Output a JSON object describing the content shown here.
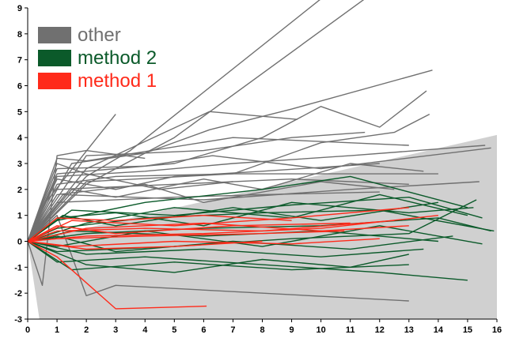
{
  "chart_data": {
    "type": "line",
    "title": "",
    "xlabel": "",
    "ylabel": "",
    "xlim": [
      0,
      16
    ],
    "ylim": [
      -3,
      9
    ],
    "xticks": [
      "0",
      "1",
      "2",
      "3",
      "4",
      "5",
      "6",
      "7",
      "8",
      "9",
      "10",
      "11",
      "12",
      "13",
      "14",
      "15",
      "16"
    ],
    "yticks": [
      "-3",
      "-2",
      "-1",
      "0",
      "1",
      "2",
      "3",
      "4",
      "5",
      "6",
      "7",
      "8",
      "9"
    ],
    "grid": false,
    "legend_position": "top-left",
    "shaded_region": {
      "color": "#d0d0d0",
      "lower": [
        [
          0,
          0
        ],
        [
          0.4,
          -3
        ],
        [
          16,
          -3
        ]
      ],
      "upper": [
        [
          0,
          0
        ],
        [
          16,
          4.1
        ]
      ]
    },
    "series": [
      {
        "name": "other",
        "color": "#707070",
        "lines": [
          [
            [
              0,
              0
            ],
            [
              0.4,
              1.2
            ],
            [
              3,
              4.9
            ]
          ],
          [
            [
              0,
              0
            ],
            [
              0.5,
              -1.7
            ],
            [
              1,
              3.3
            ],
            [
              2,
              3.5
            ],
            [
              4,
              3.2
            ]
          ],
          [
            [
              0,
              0
            ],
            [
              1,
              3.2
            ],
            [
              2,
              3.1
            ],
            [
              7,
              4.0
            ],
            [
              13,
              3.7
            ]
          ],
          [
            [
              0,
              0
            ],
            [
              1,
              2.8
            ],
            [
              4,
              2.9
            ],
            [
              6.3,
              3.3
            ],
            [
              10,
              2.8
            ],
            [
              15.8,
              3.6
            ]
          ],
          [
            [
              0,
              0
            ],
            [
              1,
              2.5
            ],
            [
              4,
              2.7
            ],
            [
              7,
              3.0
            ],
            [
              11,
              3.3
            ],
            [
              15.6,
              3.7
            ]
          ],
          [
            [
              0,
              0
            ],
            [
              1,
              2.2
            ],
            [
              3,
              2.5
            ],
            [
              7,
              2.6
            ],
            [
              11,
              2.6
            ],
            [
              14,
              2.6
            ]
          ],
          [
            [
              0,
              0
            ],
            [
              1,
              2.0
            ],
            [
              5,
              2.2
            ],
            [
              9,
              2.4
            ],
            [
              13,
              2.2
            ]
          ],
          [
            [
              0,
              0
            ],
            [
              1.2,
              1.8
            ],
            [
              6,
              1.6
            ],
            [
              11,
              2.0
            ],
            [
              15.4,
              2.3
            ]
          ],
          [
            [
              0,
              0
            ],
            [
              1,
              1.5
            ],
            [
              5,
              1.7
            ],
            [
              8,
              1.8
            ],
            [
              12,
              1.9
            ]
          ],
          [
            [
              0,
              0
            ],
            [
              2,
              2.5
            ],
            [
              3.5,
              3.5
            ],
            [
              10.5,
              9.8
            ]
          ],
          [
            [
              0,
              0
            ],
            [
              2,
              2.2
            ],
            [
              5,
              4.0
            ],
            [
              11.8,
              9.6
            ]
          ],
          [
            [
              0,
              0
            ],
            [
              1.5,
              3.0
            ],
            [
              4,
              3.4
            ],
            [
              6.2,
              4.3
            ],
            [
              9,
              5.1
            ],
            [
              13.8,
              6.6
            ]
          ],
          [
            [
              0,
              0
            ],
            [
              2,
              2.8
            ],
            [
              6.2,
              5.0
            ],
            [
              9.2,
              4.7
            ]
          ],
          [
            [
              0,
              0
            ],
            [
              1,
              2.6
            ],
            [
              5,
              3.0
            ],
            [
              8,
              4.0
            ],
            [
              10,
              5.2
            ],
            [
              12,
              4.4
            ],
            [
              13.6,
              5.8
            ]
          ],
          [
            [
              0,
              0
            ],
            [
              2,
              3.3
            ],
            [
              6,
              3.5
            ],
            [
              9,
              4.0
            ],
            [
              11.5,
              4.2
            ]
          ],
          [
            [
              0,
              0
            ],
            [
              2,
              2.3
            ],
            [
              7,
              2.6
            ],
            [
              10,
              3.8
            ],
            [
              12.5,
              4.2
            ],
            [
              13.7,
              4.9
            ]
          ],
          [
            [
              0,
              0
            ],
            [
              1,
              1.0
            ],
            [
              2,
              -2.1
            ],
            [
              3,
              -1.7
            ],
            [
              13,
              -2.3
            ]
          ],
          [
            [
              0,
              0
            ],
            [
              1.5,
              2.0
            ],
            [
              3,
              1.7
            ],
            [
              6,
              2.4
            ],
            [
              8,
              2.0
            ],
            [
              11,
              3.0
            ],
            [
              13.5,
              2.7
            ]
          ],
          [
            [
              0,
              0
            ],
            [
              1,
              2.4
            ],
            [
              3,
              2.0
            ],
            [
              5,
              2.5
            ],
            [
              8,
              2.7
            ],
            [
              12,
              3.0
            ]
          ],
          [
            [
              0,
              0
            ],
            [
              1,
              1.8
            ],
            [
              4,
              2.2
            ],
            [
              6,
              1.5
            ],
            [
              10,
              2.3
            ],
            [
              12.5,
              2.0
            ]
          ],
          [
            [
              0,
              0
            ],
            [
              1,
              3.0
            ],
            [
              2,
              2.6
            ],
            [
              4.5,
              2.0
            ],
            [
              7,
              2.3
            ]
          ]
        ]
      },
      {
        "name": "method 2",
        "color": "#0b5a2a",
        "lines": [
          [
            [
              0,
              0
            ],
            [
              1,
              0.8
            ],
            [
              4,
              1.5
            ],
            [
              8,
              2.0
            ],
            [
              11,
              2.5
            ],
            [
              15,
              1.3
            ]
          ],
          [
            [
              0,
              0
            ],
            [
              1.5,
              1.2
            ],
            [
              5,
              1.0
            ],
            [
              9,
              1.4
            ],
            [
              13,
              1.7
            ],
            [
              15.5,
              0.9
            ]
          ],
          [
            [
              0,
              0
            ],
            [
              1,
              0.5
            ],
            [
              4,
              0.9
            ],
            [
              8,
              1.1
            ],
            [
              12,
              1.2
            ],
            [
              15.9,
              0.4
            ]
          ],
          [
            [
              0,
              0
            ],
            [
              2,
              0.3
            ],
            [
              6,
              0.5
            ],
            [
              10,
              0.6
            ],
            [
              14,
              0.9
            ],
            [
              15.8,
              0.4
            ]
          ],
          [
            [
              0,
              0
            ],
            [
              1,
              -0.4
            ],
            [
              5,
              -0.2
            ],
            [
              9,
              0.1
            ],
            [
              13,
              0.3
            ],
            [
              15.3,
              1.6
            ]
          ],
          [
            [
              0,
              0
            ],
            [
              1,
              -0.8
            ],
            [
              4,
              -0.6
            ],
            [
              8,
              -0.9
            ],
            [
              12,
              -1.2
            ],
            [
              15,
              -1.5
            ]
          ],
          [
            [
              0,
              0
            ],
            [
              1.5,
              -1.1
            ],
            [
              5,
              -0.8
            ],
            [
              9,
              -1.1
            ],
            [
              13,
              -0.9
            ]
          ],
          [
            [
              0,
              0
            ],
            [
              2,
              -0.5
            ],
            [
              6,
              -0.3
            ],
            [
              10,
              -0.6
            ],
            [
              13.5,
              -0.3
            ]
          ],
          [
            [
              0,
              0
            ],
            [
              1,
              0.2
            ],
            [
              3,
              -0.4
            ],
            [
              7,
              0.0
            ],
            [
              11,
              -0.3
            ],
            [
              14.5,
              0.2
            ]
          ],
          [
            [
              0,
              0
            ],
            [
              1.2,
              1.0
            ],
            [
              3,
              0.6
            ],
            [
              7,
              1.3
            ],
            [
              10,
              0.8
            ],
            [
              14,
              1.5
            ]
          ],
          [
            [
              0,
              0
            ],
            [
              2,
              0.7
            ],
            [
              5,
              1.3
            ],
            [
              9,
              0.9
            ],
            [
              12,
              1.8
            ],
            [
              15,
              1.0
            ]
          ],
          [
            [
              0,
              0
            ],
            [
              1,
              -0.2
            ],
            [
              4,
              0.4
            ],
            [
              8,
              -0.2
            ],
            [
              12,
              0.6
            ],
            [
              15.5,
              -0.1
            ]
          ],
          [
            [
              0,
              0
            ],
            [
              1.5,
              0.4
            ],
            [
              6,
              0.2
            ],
            [
              10,
              0.4
            ],
            [
              14,
              0.0
            ]
          ],
          [
            [
              0,
              0
            ],
            [
              1,
              0.9
            ],
            [
              3,
              1.1
            ],
            [
              6,
              0.6
            ],
            [
              9,
              1.5
            ],
            [
              13,
              1.1
            ],
            [
              15.2,
              1.3
            ]
          ],
          [
            [
              0,
              0
            ],
            [
              2,
              -0.9
            ],
            [
              5,
              -1.2
            ],
            [
              8,
              -0.7
            ],
            [
              11,
              -1.0
            ],
            [
              13,
              -0.5
            ]
          ]
        ]
      },
      {
        "name": "method 1",
        "color": "#ff2a1a",
        "lines": [
          [
            [
              0,
              0
            ],
            [
              1,
              -0.6
            ],
            [
              3,
              -2.6
            ],
            [
              6.1,
              -2.5
            ]
          ],
          [
            [
              0,
              0
            ],
            [
              1.5,
              0.8
            ],
            [
              5,
              0.6
            ],
            [
              9,
              0.9
            ],
            [
              13,
              1.3
            ]
          ],
          [
            [
              0,
              0
            ],
            [
              1,
              0.4
            ],
            [
              4,
              0.5
            ],
            [
              8,
              0.4
            ],
            [
              12.5,
              0.8
            ]
          ],
          [
            [
              0,
              0
            ],
            [
              2,
              0.2
            ],
            [
              6,
              0.3
            ],
            [
              10,
              0.5
            ],
            [
              14,
              1.0
            ]
          ],
          [
            [
              0,
              0
            ],
            [
              1,
              0.6
            ],
            [
              3,
              0.3
            ],
            [
              7,
              0.6
            ],
            [
              11,
              0.7
            ]
          ],
          [
            [
              0,
              0
            ],
            [
              1.5,
              -0.2
            ],
            [
              5,
              0.0
            ],
            [
              9,
              -0.1
            ],
            [
              12,
              0.1
            ]
          ],
          [
            [
              0,
              0
            ],
            [
              2,
              0.5
            ],
            [
              6,
              0.7
            ],
            [
              10,
              0.4
            ],
            [
              13,
              0.6
            ]
          ],
          [
            [
              0,
              0
            ],
            [
              1,
              0.1
            ],
            [
              4,
              0.2
            ],
            [
              8,
              0.3
            ],
            [
              10.8,
              0.4
            ]
          ],
          [
            [
              0,
              0
            ],
            [
              2,
              -0.3
            ],
            [
              5,
              -0.2
            ],
            [
              8,
              0.0
            ]
          ],
          [
            [
              0,
              0
            ],
            [
              1,
              0.9
            ],
            [
              3,
              0.8
            ],
            [
              6,
              1.0
            ],
            [
              9,
              0.8
            ]
          ]
        ]
      }
    ]
  },
  "legend": {
    "items": [
      {
        "label": "other",
        "color": "#707070"
      },
      {
        "label": "method 2",
        "color": "#0b5a2a"
      },
      {
        "label": "method 1",
        "color": "#ff2a1a"
      }
    ]
  }
}
